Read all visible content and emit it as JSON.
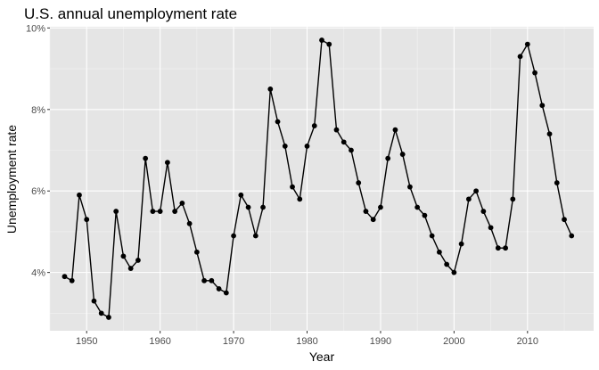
{
  "chart_data": {
    "type": "line",
    "title": "U.S. annual unemployment rate",
    "xlabel": "Year",
    "ylabel": "Unemployment rate",
    "xlim": [
      1945,
      2019
    ],
    "ylim": [
      2.57,
      10.03
    ],
    "x_ticks": [
      1950,
      1960,
      1970,
      1980,
      1990,
      2000,
      2010
    ],
    "x_tick_labels": [
      "1950",
      "1960",
      "1970",
      "1980",
      "1990",
      "2000",
      "2010"
    ],
    "y_ticks": [
      4,
      6,
      8,
      10
    ],
    "y_tick_labels": [
      "4%",
      "6%",
      "8%",
      "10%"
    ],
    "grid": true,
    "legend": "none",
    "colors": {
      "panel": "#e5e5e5",
      "grid": "#ffffff",
      "series": "#000000"
    },
    "series": [
      {
        "x": [
          1947,
          1948,
          1949,
          1950,
          1951,
          1952,
          1953,
          1954,
          1955,
          1956,
          1957,
          1958,
          1959,
          1960,
          1961,
          1962,
          1963,
          1964,
          1965,
          1966,
          1967,
          1968,
          1969,
          1970,
          1971,
          1972,
          1973,
          1974,
          1975,
          1976,
          1977,
          1978,
          1979,
          1980,
          1981,
          1982,
          1983,
          1984,
          1985,
          1986,
          1987,
          1988,
          1989,
          1990,
          1991,
          1992,
          1993,
          1994,
          1995,
          1996,
          1997,
          1998,
          1999,
          2000,
          2001,
          2002,
          2003,
          2004,
          2005,
          2006,
          2007,
          2008,
          2009,
          2010,
          2011,
          2012,
          2013,
          2014,
          2015,
          2016
        ],
        "values": [
          3.9,
          3.8,
          5.9,
          5.3,
          3.3,
          3.0,
          2.9,
          5.5,
          4.4,
          4.1,
          4.3,
          6.8,
          5.5,
          5.5,
          6.7,
          5.5,
          5.7,
          5.2,
          4.5,
          3.8,
          3.8,
          3.6,
          3.5,
          4.9,
          5.9,
          5.6,
          4.9,
          5.6,
          8.5,
          7.7,
          7.1,
          6.1,
          5.8,
          7.1,
          7.6,
          9.7,
          9.6,
          7.5,
          7.2,
          7.0,
          6.2,
          5.5,
          5.3,
          5.6,
          6.8,
          7.5,
          6.9,
          6.1,
          5.6,
          5.4,
          4.9,
          4.5,
          4.2,
          4.0,
          4.7,
          5.8,
          6.0,
          5.5,
          5.1,
          4.6,
          4.6,
          5.8,
          9.3,
          9.6,
          8.9,
          8.1,
          7.4,
          6.2,
          5.3,
          4.9
        ]
      }
    ]
  }
}
